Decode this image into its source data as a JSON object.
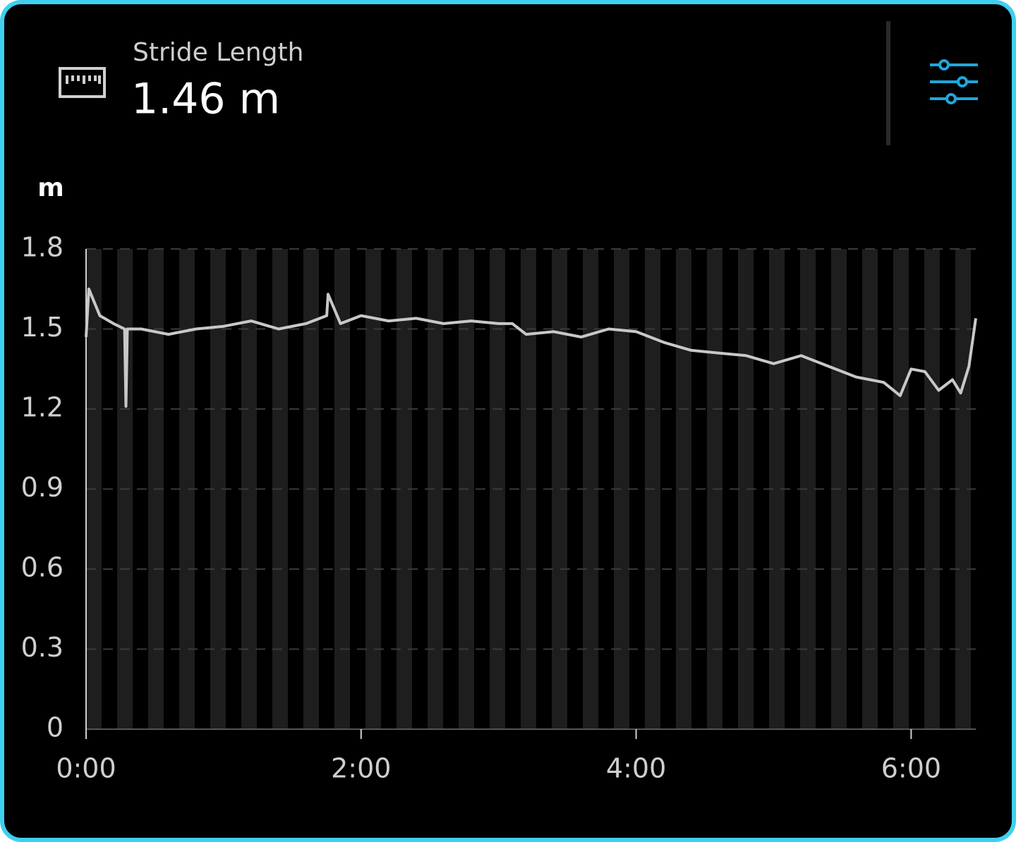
{
  "header": {
    "title": "Stride Length",
    "value": "1.46 m"
  },
  "chart_data": {
    "type": "line",
    "y_label": "m",
    "x": [
      0,
      0.02,
      0.1,
      0.2,
      0.28,
      0.29,
      0.3,
      0.4,
      0.6,
      0.8,
      1.0,
      1.2,
      1.4,
      1.6,
      1.75,
      1.76,
      1.85,
      2.0,
      2.2,
      2.4,
      2.6,
      2.8,
      3.0,
      3.1,
      3.2,
      3.4,
      3.6,
      3.8,
      4.0,
      4.2,
      4.4,
      4.6,
      4.8,
      5.0,
      5.2,
      5.4,
      5.6,
      5.8,
      5.92,
      6.0,
      6.1,
      6.2,
      6.3,
      6.36,
      6.42,
      6.47
    ],
    "series": [
      {
        "name": "Stride Length",
        "color": "#c8c8c8",
        "values": [
          1.47,
          1.65,
          1.55,
          1.52,
          1.5,
          1.21,
          1.5,
          1.5,
          1.48,
          1.5,
          1.51,
          1.53,
          1.5,
          1.52,
          1.55,
          1.63,
          1.52,
          1.55,
          1.53,
          1.54,
          1.52,
          1.53,
          1.52,
          1.52,
          1.48,
          1.49,
          1.47,
          1.5,
          1.49,
          1.45,
          1.42,
          1.41,
          1.4,
          1.37,
          1.4,
          1.36,
          1.32,
          1.3,
          1.25,
          1.35,
          1.34,
          1.27,
          1.31,
          1.26,
          1.36,
          1.54
        ]
      }
    ],
    "xlim": [
      0,
      6.47
    ],
    "ylim": [
      0,
      1.8
    ],
    "xticks": [
      {
        "value": 0,
        "label": "0:00"
      },
      {
        "value": 2,
        "label": "2:00"
      },
      {
        "value": 4,
        "label": "4:00"
      },
      {
        "value": 6,
        "label": "6:00"
      }
    ],
    "yticks": [
      0,
      0.3,
      0.6,
      0.9,
      1.2,
      1.5,
      1.8
    ],
    "grid": true
  }
}
